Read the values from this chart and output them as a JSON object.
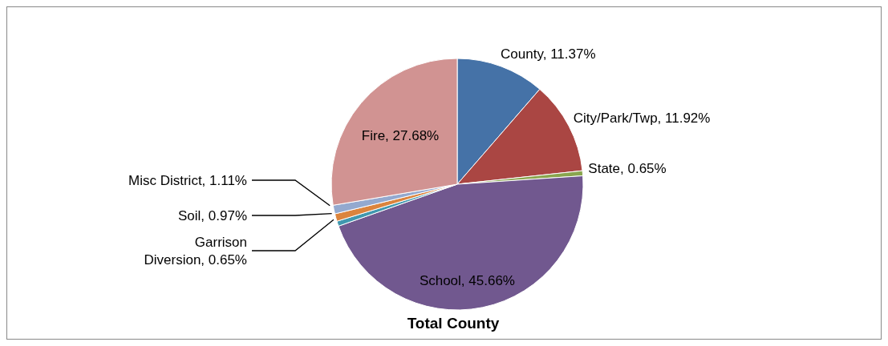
{
  "chart_data": {
    "type": "pie",
    "title": "Total County",
    "categories": [
      "County",
      "City/Park/Twp",
      "State",
      "School",
      "Garrison Diversion",
      "Soil",
      "Misc District",
      "Fire"
    ],
    "values": [
      11.37,
      11.92,
      0.65,
      45.66,
      0.65,
      0.97,
      1.11,
      27.68
    ],
    "colors": [
      "#4572a7",
      "#aa4643",
      "#89a54e",
      "#71588f",
      "#4198af",
      "#db843d",
      "#93a9cf",
      "#d19392"
    ],
    "value_labels": [
      "11.37%",
      "11.92%",
      "0.65%",
      "45.66%",
      "0.65%",
      "0.97%",
      "1.11%",
      "27.68%"
    ],
    "legend": false
  }
}
